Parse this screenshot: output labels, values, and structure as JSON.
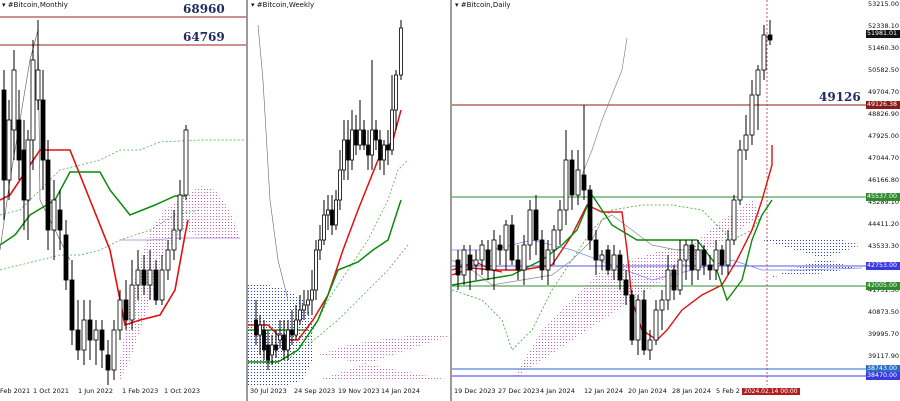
{
  "charts": {
    "monthly": {
      "title": "#Bitcoin,Monthly",
      "level_high": "68960",
      "level_low": "64769",
      "x_labels": [
        "Feb 2021",
        "1 Oct 2021",
        "1 Jun 2022",
        "1 Feb 2023",
        "1 Oct 2023"
      ]
    },
    "weekly": {
      "title": "#Bitcoin,Weekly",
      "x_labels": [
        "30 Jul 2023",
        "24 Sep 2023",
        "19 Nov 2023",
        "14 Jan 2024"
      ]
    },
    "daily": {
      "title": "#Bitcoin,Daily",
      "level_label": "49126",
      "x_labels": [
        "19 Dec 2023",
        "27 Dec 2023",
        "4 Jan 2024",
        "12 Jan 2024",
        "20 Jan 2024",
        "28 Jan 2024",
        "5 Feb 2"
      ],
      "time_tag": "2024.02.14 00:00",
      "price_scale": [
        "53215.00",
        "52338.10",
        "51460.30",
        "50582.50",
        "49704.70",
        "48826.90",
        "47925.00",
        "47044.70",
        "46166.80",
        "45289.10",
        "44411.20",
        "43533.30",
        "42655.50",
        "41751.30",
        "40873.50",
        "39995.70",
        "39117.90",
        "38240.10"
      ],
      "price_tags": [
        {
          "text": "51981.01",
          "bg": "#111111",
          "fg": "#ffffff"
        },
        {
          "text": "49126.38",
          "bg": "#8b1a1a",
          "fg": "#ffffff"
        },
        {
          "text": "45537.00",
          "bg": "#2e8b2e",
          "fg": "#ffffff"
        },
        {
          "text": "42753.00",
          "bg": "#3a3ae0",
          "fg": "#ffffff"
        },
        {
          "text": "42005.00",
          "bg": "#2e8b2e",
          "fg": "#ffffff"
        },
        {
          "text": "38743.00",
          "bg": "#2a6ac8",
          "fg": "#ffffff"
        },
        {
          "text": "38470.00",
          "bg": "#3a3ae0",
          "fg": "#ffffff"
        }
      ]
    }
  },
  "chart_data": [
    {
      "type": "candlestick",
      "title": "#Bitcoin,Monthly",
      "x_ticks": [
        "Feb 2021",
        "1 Oct 2021",
        "1 Jun 2022",
        "1 Feb 2023",
        "1 Oct 2023"
      ],
      "levels": [
        68960,
        64769
      ],
      "series": [
        "tenkan (red)",
        "kijun (green)",
        "cloud"
      ]
    },
    {
      "type": "candlestick",
      "title": "#Bitcoin,Weekly",
      "x_ticks": [
        "30 Jul 2023",
        "24 Sep 2023",
        "19 Nov 2023",
        "14 Jan 2024"
      ],
      "series": [
        "tenkan (red)",
        "kijun (green)",
        "cloud"
      ]
    },
    {
      "type": "candlestick",
      "title": "#Bitcoin,Daily",
      "x_ticks": [
        "19 Dec 2023",
        "27 Dec 2023",
        "4 Jan 2024",
        "12 Jan 2024",
        "20 Jan 2024",
        "28 Jan 2024",
        "5 Feb 2"
      ],
      "y_ticks": [
        53215.0,
        52338.1,
        51460.3,
        50582.5,
        49704.7,
        48826.9,
        47925.0,
        47044.7,
        46166.8,
        45289.1,
        44411.2,
        43533.3,
        42655.5,
        41751.3,
        40873.5,
        39995.7,
        39117.9,
        38240.1
      ],
      "ylim": [
        38240.1,
        53215.0
      ],
      "last_price": 51981.01,
      "levels": [
        49126.38,
        45537.0,
        42753.0,
        42005.0,
        38743.0,
        38470.0
      ],
      "series": [
        "tenkan (red)",
        "kijun (green)",
        "cloud",
        "chikou (gray)"
      ]
    }
  ]
}
